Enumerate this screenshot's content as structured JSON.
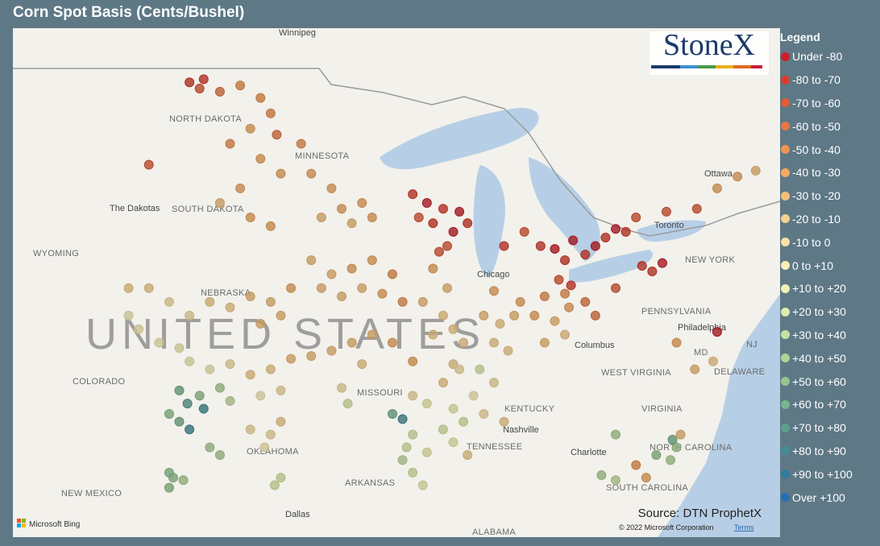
{
  "map": {
    "type": "scatter",
    "title": "Corn Spot Basis (Cents/Bushel)",
    "logo": "StoneX",
    "source": "Source: DTN ProphetX",
    "provider": "Microsoft Bing",
    "copyright": "© 2022 Microsoft Corporation",
    "terms": "Terms",
    "xlim": [
      -110.2,
      -72.4
    ],
    "ylim": [
      31.9,
      50.2
    ],
    "places": [
      "Winnipeg",
      "NORTH DAKOTA",
      "MINNESOTA",
      "The Dakotas",
      "SOUTH DAKOTA",
      "WYOMING",
      "NEBRASKA",
      "UNITED STATES",
      "COLORADO",
      "MISSOURI",
      "OKLAHOMA",
      "NEW MEXICO",
      "ARKANSAS",
      "Dallas",
      "ALABAMA",
      "TENNESSEE",
      "Nashville",
      "KENTUCKY",
      "Chicago",
      "Columbus",
      "WEST VIRGINIA",
      "VIRGINIA",
      "PENNSYLVANIA",
      "Philadelphia",
      "NEW YORK",
      "MD",
      "NJ",
      "DELAWARE",
      "Ottawa",
      "Toronto",
      "Charlotte",
      "NORTH CAROLINA",
      "SOUTH CAROLINA"
    ],
    "legend": {
      "title": "Legend",
      "bins": [
        -80,
        -70,
        -60,
        -50,
        -40,
        -30,
        -20,
        -10,
        0,
        10,
        20,
        30,
        40,
        50,
        60,
        70,
        80,
        90,
        100
      ],
      "items": [
        {
          "label": "Under -80",
          "color": "#cc1f2b"
        },
        {
          "label": "-80 to -70",
          "color": "#d93c2c"
        },
        {
          "label": "-70 to -60",
          "color": "#e25a36"
        },
        {
          "label": "-60 to -50",
          "color": "#e87844"
        },
        {
          "label": "-50 to -40",
          "color": "#ee9450"
        },
        {
          "label": "-40 to -30",
          "color": "#f2aa60"
        },
        {
          "label": "-30 to -20",
          "color": "#f5bf78"
        },
        {
          "label": "-20 to -10",
          "color": "#f7d28e"
        },
        {
          "label": "-10 to 0",
          "color": "#f9e2a5"
        },
        {
          "label": "0 to +10",
          "color": "#fbf0b6"
        },
        {
          "label": "+10 to +20",
          "color": "#f2f2b4"
        },
        {
          "label": "+20 to +30",
          "color": "#e0eba8"
        },
        {
          "label": "+30 to +40",
          "color": "#c8e0a0"
        },
        {
          "label": "+40 to +50",
          "color": "#afd496"
        },
        {
          "label": "+50 to +60",
          "color": "#95c791"
        },
        {
          "label": "+60 to +70",
          "color": "#78b58c"
        },
        {
          "label": "+70 to +80",
          "color": "#5aa28d"
        },
        {
          "label": "+80 to +90",
          "color": "#428e94"
        },
        {
          "label": "+90 to +100",
          "color": "#2f7da0"
        },
        {
          "label": "Over +100",
          "color": "#2470b2"
        }
      ]
    },
    "points": {
      "lon": [
        -101.5,
        -101,
        -100.8,
        -100,
        -99,
        -98,
        -97.5,
        -98.5,
        -99.5,
        -97.2,
        -98,
        -100,
        -98.5,
        -97.5,
        -99,
        -97,
        -103.5,
        -95.5,
        -94.5,
        -95,
        -94,
        -93,
        -96,
        -93.5,
        -92.5,
        -90.5,
        -89.8,
        -89,
        -88.2,
        -89.5,
        -88.5,
        -90.2,
        -87.8,
        -88.8,
        -89.2,
        -86,
        -85,
        -84.2,
        -83.5,
        -83,
        -82.6,
        -82,
        -81.5,
        -81,
        -80.5,
        -80,
        -79.5,
        -78,
        -76.5,
        -75.5,
        -74.5,
        -73.6,
        -79.2,
        -78.7,
        -78.2,
        -80.5,
        -75.5,
        -95.5,
        -94.5,
        -93.5,
        -92.5,
        -91.5,
        -95,
        -94,
        -93,
        -92,
        -91,
        -100.5,
        -99.5,
        -98.5,
        -97.5,
        -96.5,
        -101.5,
        -102.5,
        -103.5,
        -98,
        -97,
        -101.5,
        -100.5,
        -99.5,
        -98.5,
        -97.5,
        -96.5,
        -95.5,
        -102,
        -100,
        -101,
        -102,
        -101.6,
        -100.8,
        -99.5,
        -98,
        -97,
        -102,
        -101.5,
        -102.5,
        -100.5,
        -100,
        -102.5,
        -101.8,
        -98.5,
        -97.5,
        -97.8,
        -97,
        -94.5,
        -93.5,
        -92.5,
        -91.5,
        -90.5,
        -93,
        -94,
        -93.7,
        -91.5,
        -91,
        -90.5,
        -89.8,
        -90,
        -89,
        -88.5,
        -89.5,
        -88,
        -88.8,
        -89.5,
        -88.5,
        -89,
        -88.2,
        -87,
        -86.2,
        -85.5,
        -86.5,
        -85.8,
        -87.2,
        -86.5,
        -85.2,
        -86.5,
        -84.5,
        -83.5,
        -82.8,
        -84,
        -83,
        -82,
        -84,
        -83,
        -81.5,
        -82.7,
        -83.3,
        -90.5,
        -90.8,
        -91,
        -90.5,
        -90,
        -89.8,
        -88.5,
        -88,
        -87.5,
        -87,
        -86,
        -88.5,
        -89,
        -87.8,
        -77.5,
        -77.8,
        -78.5,
        -79,
        -79.5,
        -80.5,
        -81.2,
        -77.3,
        -80.5,
        -77.7,
        -76.6,
        -75.7,
        -77.5,
        -104.5,
        -104,
        -103,
        -104.5,
        -102.5,
        -102.3,
        -97,
        -97.3
      ],
      "lat": [
        48.5,
        48.3,
        48.6,
        48.2,
        48.4,
        48,
        47.5,
        47,
        46.5,
        46.8,
        46,
        44.5,
        44,
        43.7,
        45,
        45.5,
        45.8,
        45.5,
        45,
        44,
        44.3,
        44.5,
        46.5,
        43.8,
        44,
        44.8,
        44.5,
        44.3,
        44.2,
        43.8,
        43.5,
        44,
        43.8,
        43,
        42.8,
        43,
        43.5,
        43,
        42.9,
        42.5,
        43.2,
        42.7,
        43,
        43.3,
        43.6,
        43.5,
        44,
        44.2,
        44.3,
        45,
        45.4,
        45.6,
        42.3,
        42.1,
        42.4,
        41.5,
        39.9,
        42.5,
        42,
        42.2,
        42.5,
        42,
        41.5,
        41.2,
        41.5,
        41.3,
        41,
        41,
        40.8,
        41.2,
        41,
        41.5,
        40.5,
        41,
        41.5,
        40.2,
        40.5,
        38.8,
        38.5,
        38.7,
        38.3,
        38.5,
        38.9,
        39,
        39.3,
        37.8,
        37.5,
        37.7,
        37.2,
        37,
        37.3,
        37.5,
        37.7,
        36.5,
        36.2,
        36.8,
        35.5,
        35.2,
        34.5,
        34.2,
        36.2,
        36,
        35.5,
        36.5,
        39.2,
        39.5,
        39.8,
        39.5,
        38.8,
        38.7,
        37.8,
        37.2,
        36.8,
        36.6,
        37.5,
        37.2,
        41,
        40.5,
        40,
        39.8,
        39.5,
        41.5,
        42.2,
        38.7,
        38,
        38.5,
        40.5,
        40.2,
        40.5,
        39.5,
        39.2,
        38.5,
        38,
        41,
        41.4,
        40.5,
        40.3,
        40.8,
        41.2,
        41.3,
        41,
        39.5,
        39.8,
        40.5,
        41.6,
        41.8,
        36,
        35.5,
        35,
        34.5,
        34,
        35.3,
        37,
        36.5,
        37.5,
        36.8,
        36.5,
        35.7,
        36.2,
        35.2,
        35.5,
        35,
        35.2,
        34.3,
        34.8,
        34.2,
        34.4,
        36,
        36,
        35.8,
        38.5,
        38.8,
        39.5,
        40.5,
        40,
        39.5,
        41.5,
        33.9,
        34.3,
        34.3,
        34
      ],
      "basis": [
        -75,
        -65,
        -72,
        -60,
        -45,
        -42,
        -45,
        -40,
        -48,
        -52,
        -38,
        -30,
        -35,
        -38,
        -32,
        -40,
        -70,
        -40,
        -35,
        -30,
        -32,
        -38,
        -45,
        -30,
        -35,
        -75,
        -85,
        -78,
        -82,
        -72,
        -88,
        -70,
        -75,
        -65,
        -70,
        -72,
        -65,
        -75,
        -85,
        -78,
        -82,
        -80,
        -85,
        -75,
        -88,
        -72,
        -70,
        -68,
        -65,
        -40,
        -35,
        -25,
        -78,
        -72,
        -85,
        -70,
        -85,
        -30,
        -28,
        -35,
        -40,
        -45,
        -25,
        -22,
        -30,
        -38,
        -42,
        -15,
        -20,
        -25,
        -30,
        -32,
        -5,
        -10,
        -12,
        -28,
        -22,
        10,
        5,
        -5,
        -15,
        -20,
        -25,
        -30,
        15,
        40,
        55,
        60,
        75,
        85,
        30,
        5,
        -10,
        65,
        80,
        55,
        40,
        45,
        50,
        45,
        -5,
        -10,
        0,
        -15,
        -25,
        -30,
        -28,
        -32,
        -35,
        -20,
        -5,
        20,
        60,
        85,
        -10,
        15,
        -25,
        -20,
        -15,
        -18,
        -12,
        -28,
        -35,
        -20,
        -15,
        -10,
        -25,
        -20,
        -28,
        -15,
        -12,
        20,
        -10,
        -35,
        -40,
        -35,
        -30,
        -38,
        -45,
        -50,
        -55,
        -25,
        -20,
        -60,
        -75,
        -70,
        20,
        25,
        30,
        20,
        15,
        10,
        15,
        20,
        5,
        -10,
        -20,
        10,
        25,
        -15,
        40,
        45,
        50,
        -40,
        -45,
        35,
        40,
        -30,
        45,
        60,
        -25,
        -20,
        -40,
        10,
        0,
        5,
        -15,
        50,
        55,
        20,
        25
      ]
    }
  }
}
